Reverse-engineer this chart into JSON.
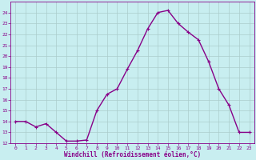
{
  "x": [
    0,
    1,
    2,
    3,
    4,
    5,
    6,
    7,
    8,
    9,
    10,
    11,
    12,
    13,
    14,
    15,
    16,
    17,
    18,
    19,
    20,
    21,
    22,
    23
  ],
  "y": [
    14.0,
    14.0,
    13.5,
    13.8,
    13.0,
    12.2,
    12.2,
    12.3,
    15.0,
    16.5,
    17.0,
    18.8,
    20.5,
    22.5,
    24.0,
    24.2,
    23.0,
    22.2,
    21.5,
    19.5,
    17.0,
    15.5,
    13.0,
    13.0
  ],
  "line_color": "#880088",
  "marker": "+",
  "marker_size": 3.0,
  "bg_color": "#c8eef0",
  "grid_color": "#aacccc",
  "xlabel": "Windchill (Refroidissement éolien,°C)",
  "xlabel_color": "#880088",
  "tick_color": "#880088",
  "ylim": [
    12,
    25
  ],
  "xlim": [
    -0.5,
    23.5
  ],
  "yticks": [
    12,
    13,
    14,
    15,
    16,
    17,
    18,
    19,
    20,
    21,
    22,
    23,
    24
  ],
  "xticks": [
    0,
    1,
    2,
    3,
    4,
    5,
    6,
    7,
    8,
    9,
    10,
    11,
    12,
    13,
    14,
    15,
    16,
    17,
    18,
    19,
    20,
    21,
    22,
    23
  ],
  "line_width": 1.0,
  "fig_width": 3.2,
  "fig_height": 2.0,
  "dpi": 100
}
